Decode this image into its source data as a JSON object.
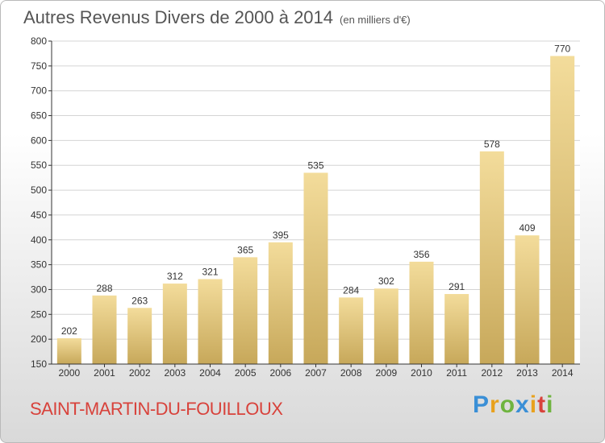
{
  "title": "Autres Revenus Divers de 2000 à 2014",
  "unit": "(en milliers d'€)",
  "place": "SAINT-MARTIN-DU-FOUILLOUX",
  "brand": "Proxiti",
  "colors": {
    "bar_top": "#f3dc9b",
    "bar_bottom": "#c7a85a",
    "grid": "#d4d4d4",
    "axis": "#333333",
    "place": "#d8423b"
  },
  "chart_data": {
    "type": "bar",
    "categories": [
      "2000",
      "2001",
      "2002",
      "2003",
      "2004",
      "2005",
      "2006",
      "2007",
      "2008",
      "2009",
      "2010",
      "2011",
      "2012",
      "2013",
      "2014"
    ],
    "values": [
      202,
      288,
      263,
      312,
      321,
      365,
      395,
      535,
      284,
      302,
      356,
      291,
      578,
      409,
      770
    ],
    "title": "Autres Revenus Divers de 2000 à 2014",
    "ylim": [
      150,
      800
    ],
    "yticks": [
      150,
      200,
      250,
      300,
      350,
      400,
      450,
      500,
      550,
      600,
      650,
      700,
      750,
      800
    ],
    "grid": true,
    "legend": "none"
  }
}
